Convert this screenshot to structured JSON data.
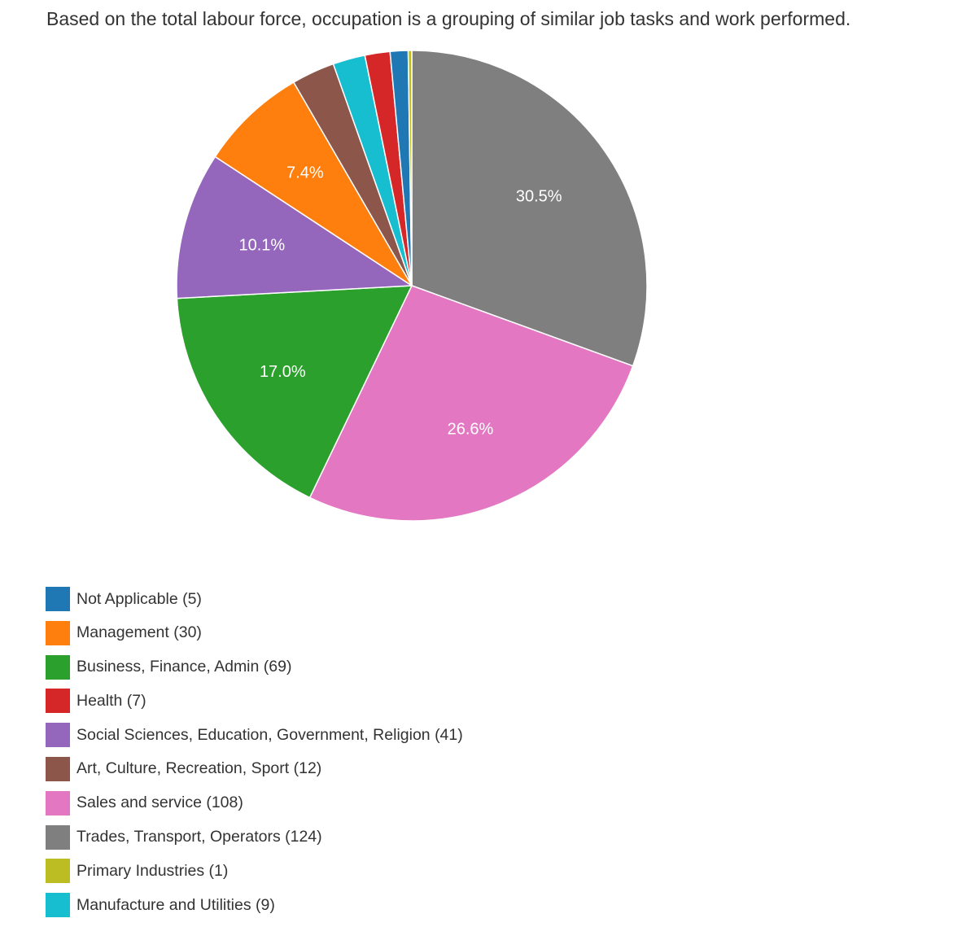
{
  "description": "Based on the total labour force, occupation is a grouping of similar job tasks and work performed.",
  "chart_data": {
    "type": "pie",
    "title": "",
    "start_angle_deg": 0,
    "direction": "clockwise",
    "slice_order": [
      "Trades, Transport, Operators",
      "Sales and service",
      "Business, Finance, Admin",
      "Social Sciences, Education, Government, Religion",
      "Management",
      "Art, Culture, Recreation, Sport",
      "Manufacture and Utilities",
      "Health",
      "Not Applicable",
      "Primary Industries"
    ],
    "slices": [
      {
        "label": "Not Applicable",
        "value": 5,
        "color": "#1f77b4",
        "legend_text": "Not Applicable (5)",
        "percent_label": ""
      },
      {
        "label": "Management",
        "value": 30,
        "color": "#ff7f0e",
        "legend_text": "Management (30)",
        "percent_label": "7.4%"
      },
      {
        "label": "Business, Finance, Admin",
        "value": 69,
        "color": "#2ca02c",
        "legend_text": "Business, Finance, Admin (69)",
        "percent_label": "17.0%"
      },
      {
        "label": "Health",
        "value": 7,
        "color": "#d62728",
        "legend_text": "Health (7)",
        "percent_label": ""
      },
      {
        "label": "Social Sciences, Education, Government, Religion",
        "value": 41,
        "color": "#9467bd",
        "legend_text": "Social Sciences, Education, Government, Religion (41)",
        "percent_label": "10.1%"
      },
      {
        "label": "Art, Culture, Recreation, Sport",
        "value": 12,
        "color": "#8c564b",
        "legend_text": "Art, Culture, Recreation, Sport (12)",
        "percent_label": ""
      },
      {
        "label": "Sales and service",
        "value": 108,
        "color": "#e377c2",
        "legend_text": "Sales and service (108)",
        "percent_label": "26.6%"
      },
      {
        "label": "Trades, Transport, Operators",
        "value": 124,
        "color": "#7f7f7f",
        "legend_text": "Trades, Transport, Operators (124)",
        "percent_label": "30.5%"
      },
      {
        "label": "Primary Industries",
        "value": 1,
        "color": "#bcbd22",
        "legend_text": "Primary Industries (1)",
        "percent_label": ""
      },
      {
        "label": "Manufacture and Utilities",
        "value": 9,
        "color": "#17becf",
        "legend_text": "Manufacture and Utilities (9)",
        "percent_label": ""
      }
    ],
    "legend_position": "bottom-left"
  }
}
